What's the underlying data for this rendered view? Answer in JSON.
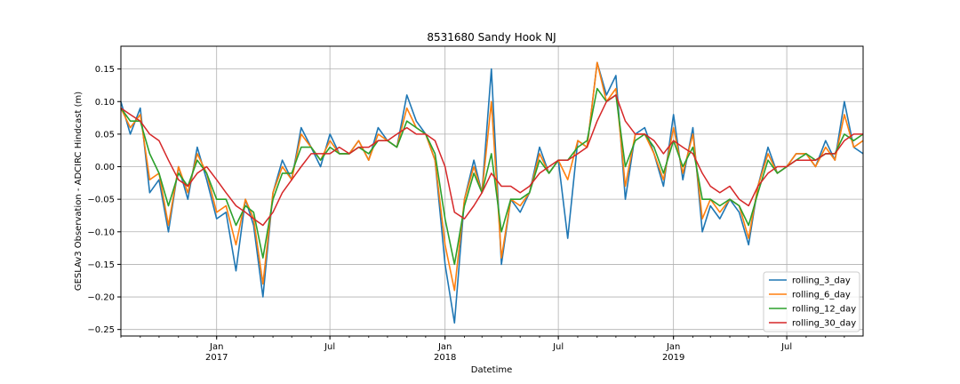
{
  "chart_data": {
    "type": "line",
    "title": "8531680 Sandy Hook NJ",
    "xlabel": "Datetime",
    "ylabel": "GESLAv3 Observation - ADCIRC Hindcast (m)",
    "xlim": [
      "2016-08-01",
      "2019-10-31"
    ],
    "ylim": [
      -0.26,
      0.185
    ],
    "grid": true,
    "legend_position": "lower right",
    "x_ticks": [
      {
        "date": "2017-01-01",
        "label": "Jan",
        "sublabel": "2017"
      },
      {
        "date": "2017-07-01",
        "label": "Jul",
        "sublabel": ""
      },
      {
        "date": "2018-01-01",
        "label": "Jan",
        "sublabel": "2018"
      },
      {
        "date": "2018-07-01",
        "label": "Jul",
        "sublabel": ""
      },
      {
        "date": "2019-01-01",
        "label": "Jan",
        "sublabel": "2019"
      },
      {
        "date": "2019-07-01",
        "label": "Jul",
        "sublabel": ""
      }
    ],
    "y_ticks": [
      -0.25,
      -0.2,
      -0.15,
      -0.1,
      -0.05,
      0.0,
      0.05,
      0.1,
      0.15
    ],
    "y_tick_labels": [
      "−0.25",
      "−0.20",
      "−0.15",
      "−0.10",
      "−0.05",
      "0.00",
      "0.05",
      "0.10",
      "0.15"
    ],
    "series": [
      {
        "name": "rolling_3_day",
        "color": "#1f77b4",
        "x": [
          "2016-08-01",
          "2016-08-16",
          "2016-09-01",
          "2016-09-16",
          "2016-10-01",
          "2016-10-16",
          "2016-11-01",
          "2016-11-16",
          "2016-12-01",
          "2016-12-16",
          "2017-01-01",
          "2017-01-16",
          "2017-02-01",
          "2017-02-16",
          "2017-03-01",
          "2017-03-16",
          "2017-04-01",
          "2017-04-16",
          "2017-05-01",
          "2017-05-16",
          "2017-06-01",
          "2017-06-16",
          "2017-07-01",
          "2017-07-16",
          "2017-08-01",
          "2017-08-16",
          "2017-09-01",
          "2017-09-16",
          "2017-10-01",
          "2017-10-16",
          "2017-11-01",
          "2017-11-16",
          "2017-12-01",
          "2017-12-16",
          "2018-01-01",
          "2018-01-16",
          "2018-02-01",
          "2018-02-16",
          "2018-03-01",
          "2018-03-16",
          "2018-04-01",
          "2018-04-16",
          "2018-05-01",
          "2018-05-16",
          "2018-06-01",
          "2018-06-16",
          "2018-07-01",
          "2018-07-16",
          "2018-08-01",
          "2018-08-16",
          "2018-09-01",
          "2018-09-16",
          "2018-10-01",
          "2018-10-16",
          "2018-11-01",
          "2018-11-16",
          "2018-12-01",
          "2018-12-16",
          "2019-01-01",
          "2019-01-16",
          "2019-02-01",
          "2019-02-16",
          "2019-03-01",
          "2019-03-16",
          "2019-04-01",
          "2019-04-16",
          "2019-05-01",
          "2019-05-16",
          "2019-06-01",
          "2019-06-16",
          "2019-07-01",
          "2019-07-16",
          "2019-08-01",
          "2019-08-16",
          "2019-09-01",
          "2019-09-16",
          "2019-10-01",
          "2019-10-16",
          "2019-10-31"
        ],
        "y": [
          0.1,
          0.05,
          0.09,
          -0.04,
          -0.02,
          -0.1,
          0.0,
          -0.05,
          0.03,
          -0.02,
          -0.08,
          -0.07,
          -0.16,
          -0.05,
          -0.09,
          -0.2,
          -0.04,
          0.01,
          -0.02,
          0.06,
          0.03,
          0.0,
          0.05,
          0.02,
          0.02,
          0.04,
          0.01,
          0.06,
          0.04,
          0.03,
          0.11,
          0.07,
          0.05,
          0.01,
          -0.15,
          -0.24,
          -0.05,
          0.01,
          -0.04,
          0.15,
          -0.15,
          -0.05,
          -0.07,
          -0.04,
          0.03,
          -0.01,
          0.01,
          -0.11,
          0.04,
          0.03,
          0.16,
          0.11,
          0.14,
          -0.05,
          0.05,
          0.06,
          0.02,
          -0.03,
          0.08,
          -0.02,
          0.06,
          -0.1,
          -0.06,
          -0.08,
          -0.05,
          -0.07,
          -0.12,
          -0.03,
          0.03,
          -0.01,
          0.0,
          0.02,
          0.02,
          0.0,
          0.04,
          0.01,
          0.1,
          0.03,
          0.02
        ]
      },
      {
        "name": "rolling_6_day",
        "color": "#ff7f0e",
        "x": [
          "2016-08-01",
          "2016-08-16",
          "2016-09-01",
          "2016-09-16",
          "2016-10-01",
          "2016-10-16",
          "2016-11-01",
          "2016-11-16",
          "2016-12-01",
          "2016-12-16",
          "2017-01-01",
          "2017-01-16",
          "2017-02-01",
          "2017-02-16",
          "2017-03-01",
          "2017-03-16",
          "2017-04-01",
          "2017-04-16",
          "2017-05-01",
          "2017-05-16",
          "2017-06-01",
          "2017-06-16",
          "2017-07-01",
          "2017-07-16",
          "2017-08-01",
          "2017-08-16",
          "2017-09-01",
          "2017-09-16",
          "2017-10-01",
          "2017-10-16",
          "2017-11-01",
          "2017-11-16",
          "2017-12-01",
          "2017-12-16",
          "2018-01-01",
          "2018-01-16",
          "2018-02-01",
          "2018-02-16",
          "2018-03-01",
          "2018-03-16",
          "2018-04-01",
          "2018-04-16",
          "2018-05-01",
          "2018-05-16",
          "2018-06-01",
          "2018-06-16",
          "2018-07-01",
          "2018-07-16",
          "2018-08-01",
          "2018-08-16",
          "2018-09-01",
          "2018-09-16",
          "2018-10-01",
          "2018-10-16",
          "2018-11-01",
          "2018-11-16",
          "2018-12-01",
          "2018-12-16",
          "2019-01-01",
          "2019-01-16",
          "2019-02-01",
          "2019-02-16",
          "2019-03-01",
          "2019-03-16",
          "2019-04-01",
          "2019-04-16",
          "2019-05-01",
          "2019-05-16",
          "2019-06-01",
          "2019-06-16",
          "2019-07-01",
          "2019-07-16",
          "2019-08-01",
          "2019-08-16",
          "2019-09-01",
          "2019-09-16",
          "2019-10-01",
          "2019-10-16",
          "2019-10-31"
        ],
        "y": [
          0.09,
          0.06,
          0.08,
          -0.02,
          -0.01,
          -0.09,
          0.0,
          -0.04,
          0.02,
          -0.01,
          -0.07,
          -0.06,
          -0.12,
          -0.05,
          -0.08,
          -0.18,
          -0.04,
          0.0,
          -0.02,
          0.05,
          0.03,
          0.01,
          0.04,
          0.02,
          0.02,
          0.04,
          0.01,
          0.05,
          0.04,
          0.03,
          0.09,
          0.06,
          0.05,
          0.01,
          -0.12,
          -0.19,
          -0.05,
          0.0,
          -0.04,
          0.1,
          -0.14,
          -0.05,
          -0.06,
          -0.04,
          0.02,
          -0.01,
          0.01,
          -0.02,
          0.04,
          0.03,
          0.16,
          0.1,
          0.12,
          -0.03,
          0.05,
          0.05,
          0.02,
          -0.02,
          0.06,
          -0.01,
          0.05,
          -0.08,
          -0.05,
          -0.07,
          -0.05,
          -0.06,
          -0.11,
          -0.03,
          0.02,
          -0.01,
          0.0,
          0.02,
          0.02,
          0.0,
          0.03,
          0.01,
          0.08,
          0.03,
          0.04
        ]
      },
      {
        "name": "rolling_12_day",
        "color": "#2ca02c",
        "x": [
          "2016-08-01",
          "2016-08-16",
          "2016-09-01",
          "2016-09-16",
          "2016-10-01",
          "2016-10-16",
          "2016-11-01",
          "2016-11-16",
          "2016-12-01",
          "2016-12-16",
          "2017-01-01",
          "2017-01-16",
          "2017-02-01",
          "2017-02-16",
          "2017-03-01",
          "2017-03-16",
          "2017-04-01",
          "2017-04-16",
          "2017-05-01",
          "2017-05-16",
          "2017-06-01",
          "2017-06-16",
          "2017-07-01",
          "2017-07-16",
          "2017-08-01",
          "2017-08-16",
          "2017-09-01",
          "2017-09-16",
          "2017-10-01",
          "2017-10-16",
          "2017-11-01",
          "2017-11-16",
          "2017-12-01",
          "2017-12-16",
          "2018-01-01",
          "2018-01-16",
          "2018-02-01",
          "2018-02-16",
          "2018-03-01",
          "2018-03-16",
          "2018-04-01",
          "2018-04-16",
          "2018-05-01",
          "2018-05-16",
          "2018-06-01",
          "2018-06-16",
          "2018-07-01",
          "2018-07-16",
          "2018-08-01",
          "2018-08-16",
          "2018-09-01",
          "2018-09-16",
          "2018-10-01",
          "2018-10-16",
          "2018-11-01",
          "2018-11-16",
          "2018-12-01",
          "2018-12-16",
          "2019-01-01",
          "2019-01-16",
          "2019-02-01",
          "2019-02-16",
          "2019-03-01",
          "2019-03-16",
          "2019-04-01",
          "2019-04-16",
          "2019-05-01",
          "2019-05-16",
          "2019-06-01",
          "2019-06-16",
          "2019-07-01",
          "2019-07-16",
          "2019-08-01",
          "2019-08-16",
          "2019-09-01",
          "2019-09-16",
          "2019-10-01",
          "2019-10-16",
          "2019-10-31"
        ],
        "y": [
          0.09,
          0.07,
          0.07,
          0.02,
          -0.01,
          -0.06,
          -0.01,
          -0.03,
          0.01,
          -0.01,
          -0.05,
          -0.05,
          -0.09,
          -0.06,
          -0.07,
          -0.14,
          -0.05,
          -0.01,
          -0.01,
          0.03,
          0.03,
          0.01,
          0.03,
          0.02,
          0.02,
          0.03,
          0.02,
          0.04,
          0.04,
          0.03,
          0.07,
          0.06,
          0.05,
          0.02,
          -0.08,
          -0.15,
          -0.06,
          -0.01,
          -0.04,
          0.02,
          -0.1,
          -0.05,
          -0.05,
          -0.04,
          0.01,
          -0.01,
          0.01,
          0.01,
          0.03,
          0.04,
          0.12,
          0.1,
          0.11,
          0.0,
          0.04,
          0.05,
          0.03,
          -0.01,
          0.04,
          0.0,
          0.03,
          -0.05,
          -0.05,
          -0.06,
          -0.05,
          -0.06,
          -0.09,
          -0.04,
          0.01,
          -0.01,
          0.0,
          0.01,
          0.02,
          0.01,
          0.02,
          0.02,
          0.05,
          0.04,
          0.05
        ]
      },
      {
        "name": "rolling_30_day",
        "color": "#d62728",
        "x": [
          "2016-08-01",
          "2016-08-16",
          "2016-09-01",
          "2016-09-16",
          "2016-10-01",
          "2016-10-16",
          "2016-11-01",
          "2016-11-16",
          "2016-12-01",
          "2016-12-16",
          "2017-01-01",
          "2017-01-16",
          "2017-02-01",
          "2017-02-16",
          "2017-03-01",
          "2017-03-16",
          "2017-04-01",
          "2017-04-16",
          "2017-05-01",
          "2017-05-16",
          "2017-06-01",
          "2017-06-16",
          "2017-07-01",
          "2017-07-16",
          "2017-08-01",
          "2017-08-16",
          "2017-09-01",
          "2017-09-16",
          "2017-10-01",
          "2017-10-16",
          "2017-11-01",
          "2017-11-16",
          "2017-12-01",
          "2017-12-16",
          "2018-01-01",
          "2018-01-16",
          "2018-02-01",
          "2018-02-16",
          "2018-03-01",
          "2018-03-16",
          "2018-04-01",
          "2018-04-16",
          "2018-05-01",
          "2018-05-16",
          "2018-06-01",
          "2018-06-16",
          "2018-07-01",
          "2018-07-16",
          "2018-08-01",
          "2018-08-16",
          "2018-09-01",
          "2018-09-16",
          "2018-10-01",
          "2018-10-16",
          "2018-11-01",
          "2018-11-16",
          "2018-12-01",
          "2018-12-16",
          "2019-01-01",
          "2019-01-16",
          "2019-02-01",
          "2019-02-16",
          "2019-03-01",
          "2019-03-16",
          "2019-04-01",
          "2019-04-16",
          "2019-05-01",
          "2019-05-16",
          "2019-06-01",
          "2019-06-16",
          "2019-07-01",
          "2019-07-16",
          "2019-08-01",
          "2019-08-16",
          "2019-09-01",
          "2019-09-16",
          "2019-10-01",
          "2019-10-16",
          "2019-10-31"
        ],
        "y": [
          0.09,
          0.08,
          0.07,
          0.05,
          0.04,
          0.01,
          -0.02,
          -0.03,
          -0.01,
          0.0,
          -0.02,
          -0.04,
          -0.06,
          -0.07,
          -0.08,
          -0.09,
          -0.07,
          -0.04,
          -0.02,
          0.0,
          0.02,
          0.02,
          0.02,
          0.03,
          0.02,
          0.03,
          0.03,
          0.04,
          0.04,
          0.05,
          0.06,
          0.05,
          0.05,
          0.04,
          0.0,
          -0.07,
          -0.08,
          -0.06,
          -0.04,
          -0.01,
          -0.03,
          -0.03,
          -0.04,
          -0.03,
          -0.01,
          0.0,
          0.01,
          0.01,
          0.02,
          0.03,
          0.07,
          0.1,
          0.11,
          0.07,
          0.05,
          0.05,
          0.04,
          0.02,
          0.04,
          0.03,
          0.02,
          -0.01,
          -0.03,
          -0.04,
          -0.03,
          -0.05,
          -0.06,
          -0.03,
          -0.01,
          0.0,
          0.0,
          0.01,
          0.01,
          0.01,
          0.02,
          0.02,
          0.04,
          0.05,
          0.05
        ]
      }
    ]
  }
}
